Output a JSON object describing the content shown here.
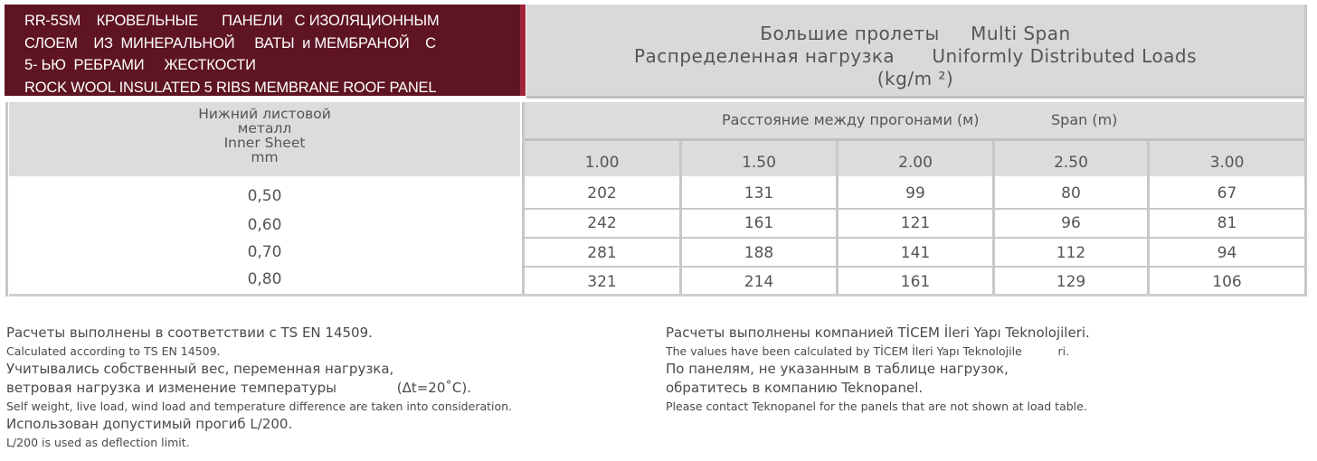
{
  "title": {
    "lines": [
      "RR-5SM    КРОВЕЛЬНЫЕ      ПАНЕЛИ   С ИЗОЛЯЦИОННЫМ",
      "СЛОЕМ    ИЗ  МИНЕРАЛЬНОЙ     ВАТЫ  и МЕМБРАНОЙ    С",
      "5- ЬЮ  РЕБРАМИ     ЖЕСТКОСТИ",
      "ROCK WOOL INSULATED 5 RIBS MEMBRANE ROOF PANEL"
    ]
  },
  "header": {
    "line1": "Большие пролеты     Multi Span",
    "line2": "Распределенная нагрузка      Uniformly Distributed Loads",
    "line3": "(kg/m ²)"
  },
  "table": {
    "inner_header": [
      "Нижний листовой",
      "металл",
      "Inner Sheet",
      "mm"
    ],
    "span_label_ru": "Расстояние между прогонами (м)",
    "span_label_en": "Span (m)",
    "spans": [
      "1.00",
      "1.50",
      "2.00",
      "2.50",
      "3.00"
    ],
    "rows": [
      {
        "thickness": "0,50",
        "values": [
          "202",
          "131",
          "99",
          "80",
          "67"
        ]
      },
      {
        "thickness": "0,60",
        "values": [
          "242",
          "161",
          "121",
          "96",
          "81"
        ]
      },
      {
        "thickness": "0,70",
        "values": [
          "281",
          "188",
          "141",
          "112",
          "94"
        ]
      },
      {
        "thickness": "0,80",
        "values": [
          "321",
          "214",
          "161",
          "129",
          "106"
        ]
      }
    ]
  },
  "notes_left": [
    {
      "text": "Расчеты выполнены в соответствии с TS EN 14509.",
      "size": "big"
    },
    {
      "text": "Calculated according to TS EN 14509.",
      "size": "small"
    },
    {
      "text": "Учитывались собственный вес, переменная нагрузка,",
      "size": "big"
    },
    {
      "text": "ветровая нагрузка и изменение температуры              (Δt=20˚C).",
      "size": "big"
    },
    {
      "text": "Self weight, live load, wind load and temperature difference are taken into consideration.",
      "size": "small"
    },
    {
      "text": "Использован допустимый прогиб L/200.",
      "size": "big"
    },
    {
      "text": "L/200 is used as deflection limit.",
      "size": "small"
    }
  ],
  "notes_right": [
    {
      "text": "Расчеты выполнены компанией TİCEM İleri Yapı Teknolojileri.",
      "size": "big"
    },
    {
      "text": "The values have been calculated by TİCEM İleri Yapı Teknolojile          ri.",
      "size": "small"
    },
    {
      "text": "По панелям, не указанным в таблице нагрузок,",
      "size": "big"
    },
    {
      "text": "обратитесь в компанию Teknopanel.",
      "size": "big"
    },
    {
      "text": "Please contact Teknopanel for the panels that are not shown at load table.",
      "size": "small"
    }
  ],
  "colors": {
    "title_bg": "#5e1422",
    "header_bg": "#d9d9d9"
  }
}
